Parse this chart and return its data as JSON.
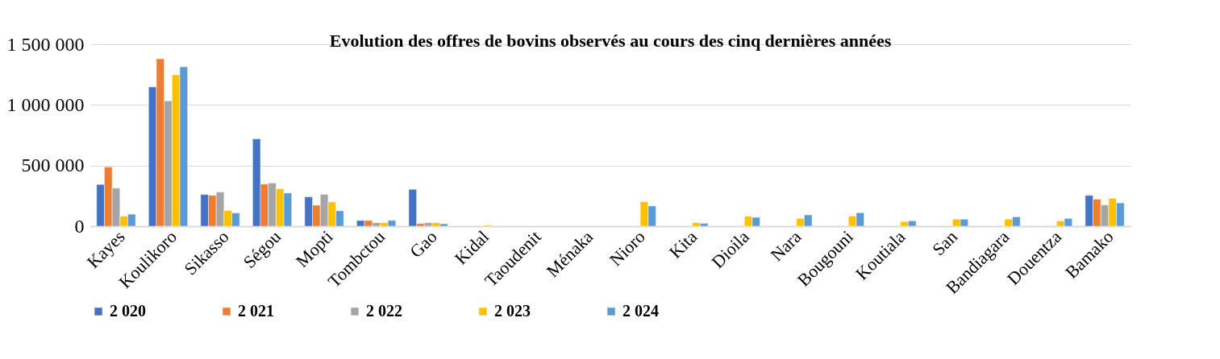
{
  "chart_data": {
    "type": "bar",
    "title": "Evolution des offres de bovins observés au cours des cinq dernières années",
    "categories": [
      "Kayes",
      "Koulikoro",
      "Sikasso",
      "Ségou",
      "Mopti",
      "Tombctou",
      "Gao",
      "Kidal",
      "Taoudenit",
      "Ménaka",
      "Nioro",
      "Kita",
      "Dioila",
      "Nara",
      "Bougouni",
      "Koutiala",
      "San",
      "Bandiagara",
      "Douentza",
      "Bamako"
    ],
    "series": [
      {
        "name": "2 020",
        "color": "#4472c4",
        "values": [
          344000,
          1148000,
          261000,
          720000,
          242000,
          47000,
          304000,
          null,
          null,
          null,
          null,
          null,
          null,
          null,
          null,
          null,
          null,
          null,
          null,
          254000
        ]
      },
      {
        "name": "2 021",
        "color": "#ed7d31",
        "values": [
          488000,
          1380000,
          254000,
          347000,
          173000,
          47000,
          22000,
          null,
          null,
          null,
          null,
          null,
          null,
          null,
          null,
          null,
          null,
          null,
          null,
          223000
        ]
      },
      {
        "name": "2 022",
        "color": "#a5a5a5",
        "values": [
          314000,
          1033000,
          281000,
          356000,
          262000,
          29000,
          29000,
          null,
          null,
          null,
          null,
          null,
          null,
          null,
          null,
          null,
          null,
          null,
          null,
          175000
        ]
      },
      {
        "name": "2 023",
        "color": "#ffc000",
        "values": [
          82000,
          1248000,
          130000,
          309000,
          200000,
          29000,
          29000,
          9000,
          null,
          null,
          202000,
          29000,
          82000,
          64000,
          84000,
          38000,
          58000,
          58000,
          44000,
          230000
        ]
      },
      {
        "name": "2 024",
        "color": "#5b9bd5",
        "values": [
          99000,
          1314000,
          109000,
          274000,
          127000,
          48000,
          20000,
          null,
          null,
          null,
          167000,
          24000,
          73000,
          93000,
          111000,
          44000,
          58000,
          77000,
          64000,
          192000
        ]
      }
    ],
    "ylim": [
      0,
      1500000
    ],
    "yticks": [
      {
        "value": 0,
        "label": "0"
      },
      {
        "value": 500000,
        "label": "500 000"
      },
      {
        "value": 1000000,
        "label": "1 000 000"
      },
      {
        "value": 1500000,
        "label": "1 500 000"
      }
    ],
    "grid": "y",
    "legend": "bottom"
  }
}
